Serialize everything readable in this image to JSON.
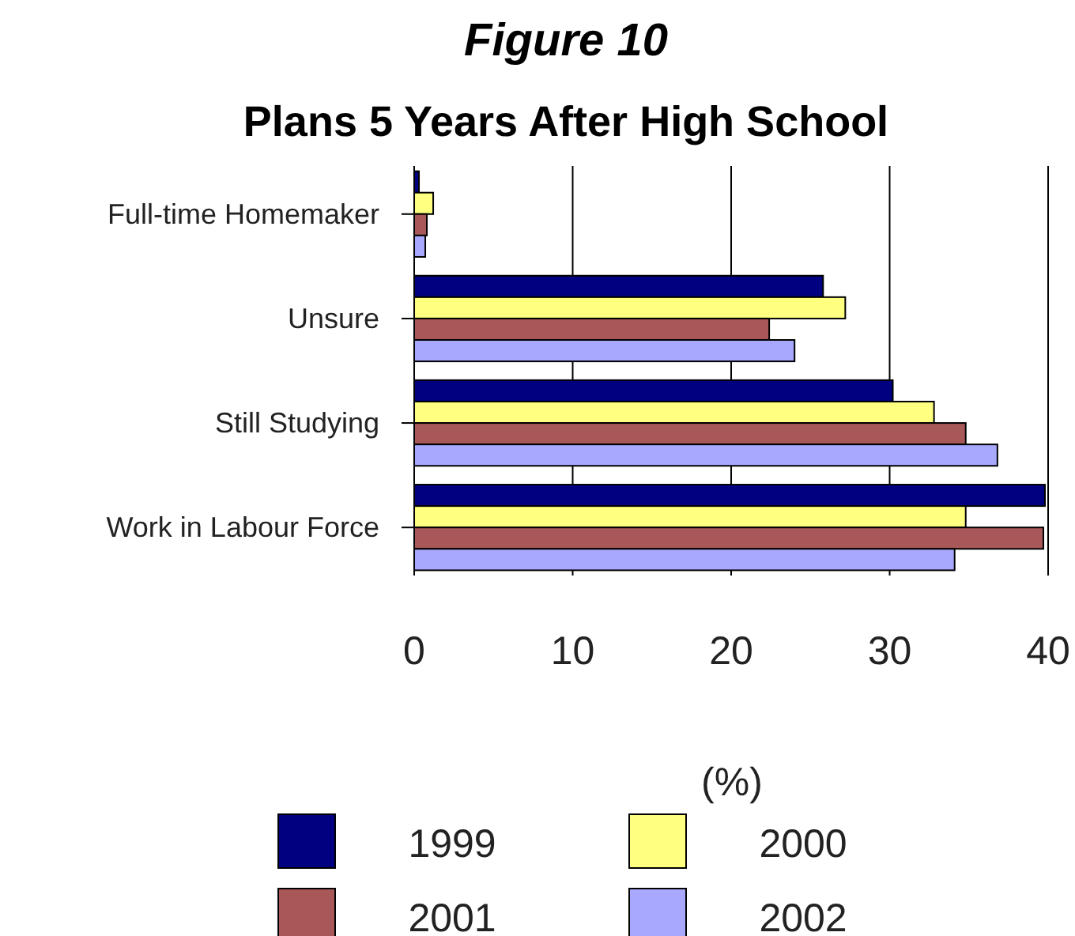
{
  "chart_data": {
    "type": "bar",
    "orientation": "horizontal",
    "title": "Figure 10",
    "subtitle": "Plans 5 Years After High School",
    "xlabel": "(%)",
    "categories": [
      "Full-time Homemaker",
      "Unsure",
      "Still Studying",
      "Work in Labour Force"
    ],
    "series": [
      {
        "name": "1999",
        "color": "#000080",
        "values": [
          0.3,
          25.8,
          30.2,
          39.8
        ]
      },
      {
        "name": "2000",
        "color": "#ffff80",
        "values": [
          1.2,
          27.2,
          32.8,
          34.8
        ]
      },
      {
        "name": "2001",
        "color": "#a85858",
        "values": [
          0.8,
          22.4,
          34.8,
          39.7
        ]
      },
      {
        "name": "2002",
        "color": "#a8a8ff",
        "values": [
          0.7,
          24.0,
          36.8,
          34.1
        ]
      }
    ],
    "xlim": [
      0,
      40
    ],
    "xticks": [
      0,
      10,
      20,
      30,
      40
    ],
    "grid": "x",
    "legend": "bottom"
  }
}
